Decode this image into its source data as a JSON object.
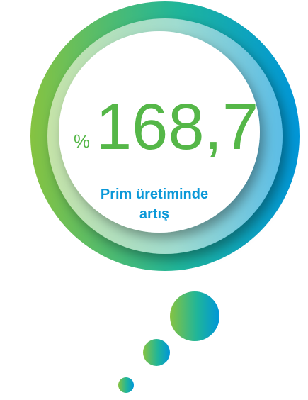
{
  "stat": {
    "prefix": "%",
    "value": "168,7",
    "caption_lines": [
      "Prim üretiminde",
      "artış"
    ]
  }
}
